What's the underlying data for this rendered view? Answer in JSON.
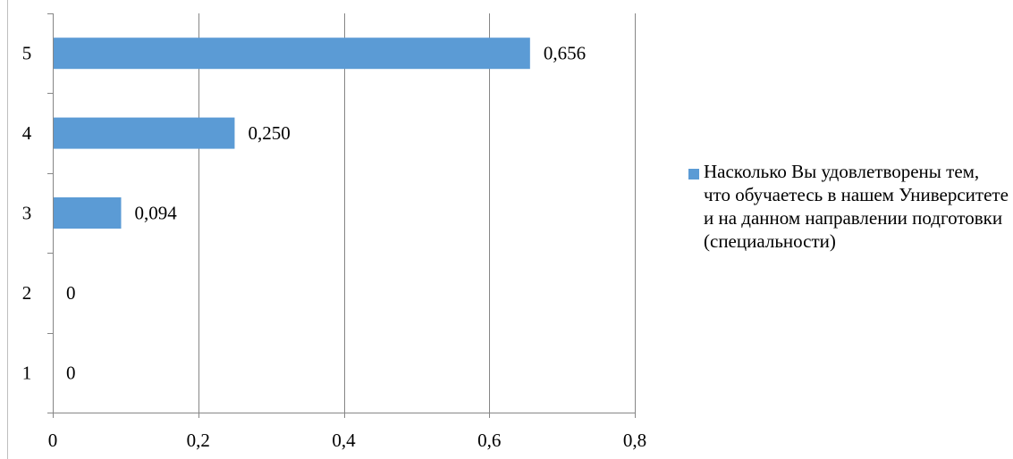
{
  "chart_data": {
    "type": "bar",
    "orientation": "horizontal",
    "categories": [
      "1",
      "2",
      "3",
      "4",
      "5"
    ],
    "series": [
      {
        "name": "Насколько Вы удовлетворены тем, что обучаетесь в нашем Университете и на данном направлении подготовки (специальности)",
        "values": [
          0,
          0,
          0.094,
          0.25,
          0.656
        ],
        "data_labels": [
          "0",
          "0",
          "0,094",
          "0,250",
          "0,656"
        ],
        "color": "#5B9BD5"
      }
    ],
    "x_ticks": [
      {
        "value": 0,
        "label": "0"
      },
      {
        "value": 0.2,
        "label": "0,2"
      },
      {
        "value": 0.4,
        "label": "0,4"
      },
      {
        "value": 0.6,
        "label": "0,6"
      },
      {
        "value": 0.8,
        "label": "0,8"
      }
    ],
    "xlim": [
      0,
      0.8
    ],
    "grid": "vertical",
    "legend_position": "right",
    "title": "",
    "xlabel": "",
    "ylabel": ""
  }
}
